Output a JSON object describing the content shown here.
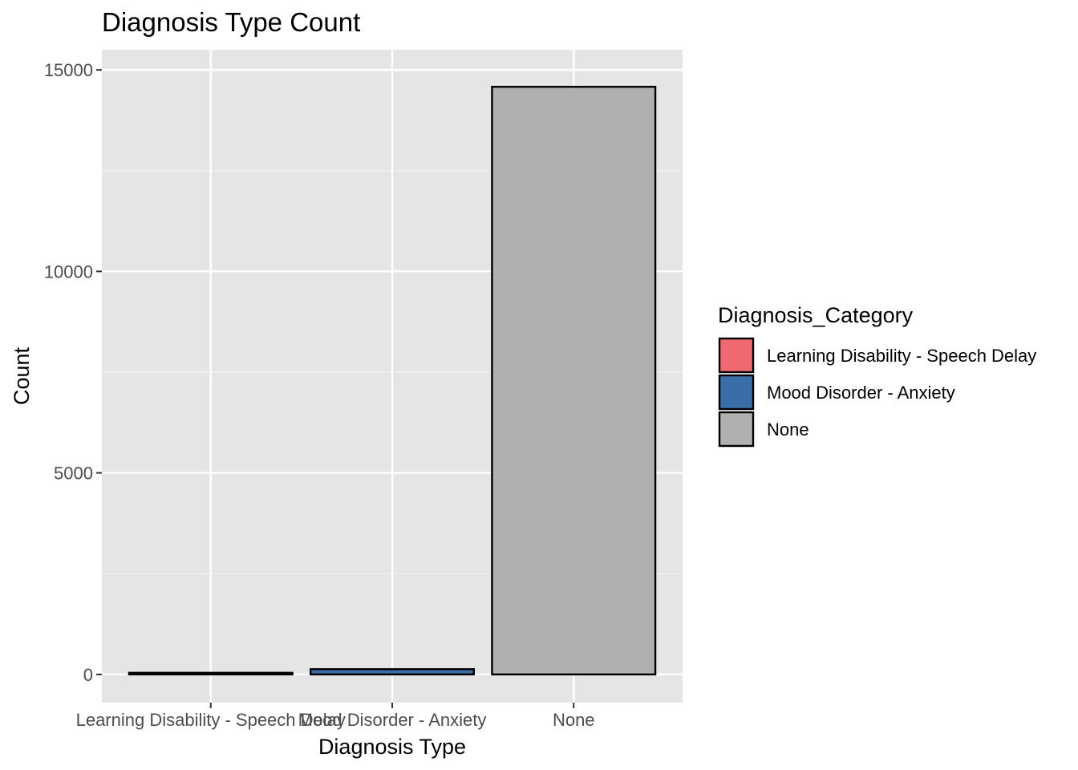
{
  "chart_data": {
    "type": "bar",
    "title": "Diagnosis Type Count",
    "xlabel": "Diagnosis Type",
    "ylabel": "Count",
    "categories": [
      "Learning Disability - Speech Delay",
      "Mood Disorder - Anxiety",
      "None"
    ],
    "values": [
      40,
      130,
      14580
    ],
    "colors": [
      "#ee6a70",
      "#3a6ea8",
      "#b0b0b0"
    ],
    "ylim": [
      -700,
      15500
    ],
    "yticks": [
      0,
      5000,
      10000,
      15000
    ],
    "ytick_labels": [
      "0",
      "5000",
      "10000",
      "15000"
    ],
    "grid": true,
    "legend": {
      "title": "Diagnosis_Category",
      "placement": "right",
      "entries": [
        "Learning Disability - Speech Delay",
        "Mood Disorder - Anxiety",
        "None"
      ]
    }
  }
}
